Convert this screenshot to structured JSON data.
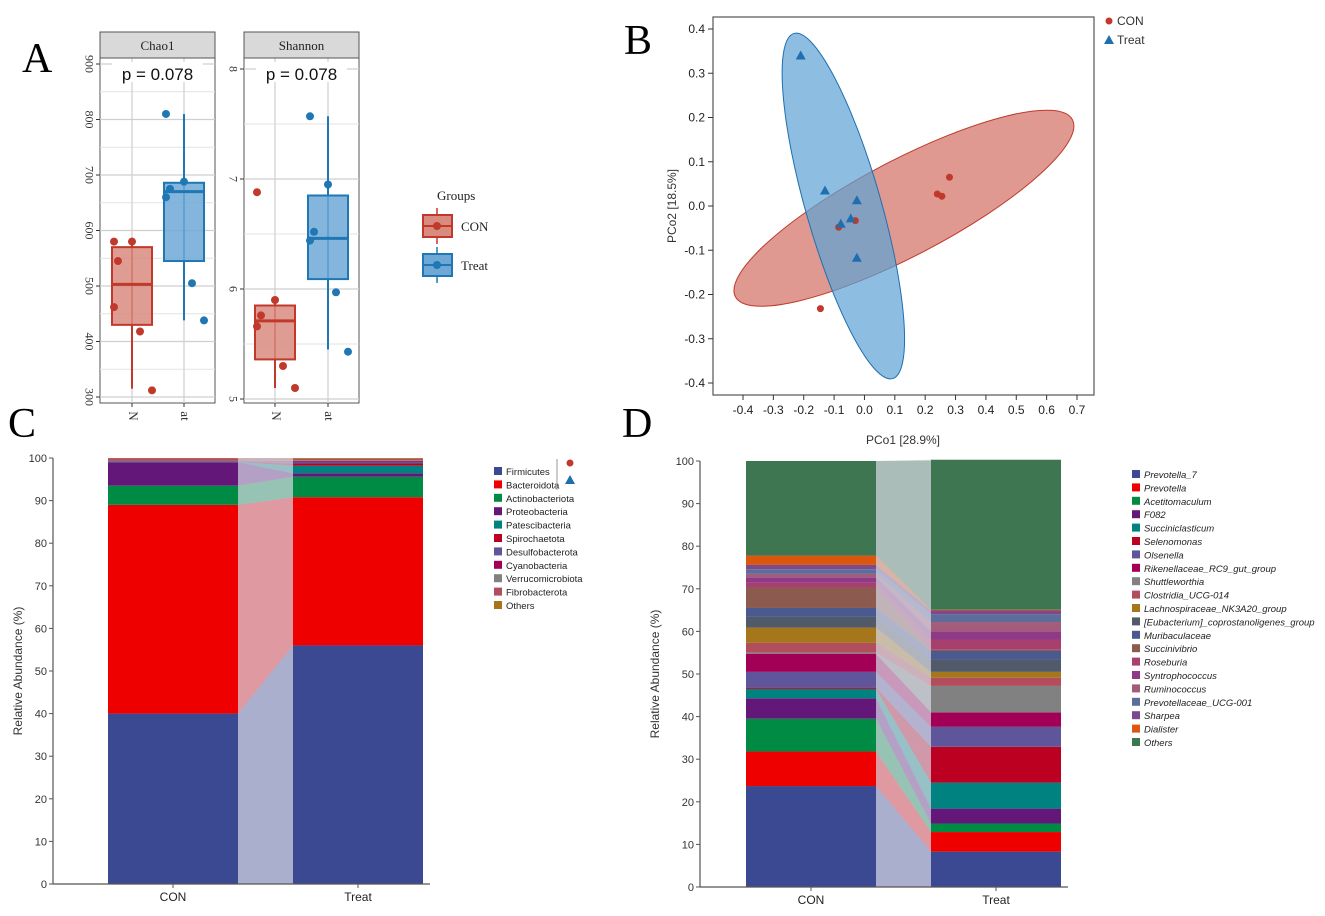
{
  "panel_letters": {
    "a": "A",
    "b": "B",
    "c": "C",
    "d": "D"
  },
  "chart_data": [
    {
      "id": "A",
      "type": "box",
      "groups": [
        {
          "name": "CON",
          "color": "#C0392B",
          "fill": "#D98B80"
        },
        {
          "name": "Treat",
          "color": "#1F77B4",
          "fill": "#6FA8D6"
        }
      ],
      "legend_title": "Groups",
      "xtick_labels": [
        "N",
        "at"
      ],
      "facets": [
        {
          "title": "Chao1",
          "pvalue": "p = 0.078",
          "ylim": [
            300,
            900
          ],
          "yticks": [
            300,
            400,
            500,
            600,
            700,
            800,
            900
          ],
          "boxes": [
            {
              "group": "CON",
              "q1": 430,
              "median": 503,
              "q3": 570,
              "low": 315,
              "high": 580,
              "points": [
                580,
                580,
                545,
                462,
                418,
                312
              ]
            },
            {
              "group": "Treat",
              "q1": 545,
              "median": 670,
              "q3": 686,
              "low": 438,
              "high": 810,
              "points": [
                810,
                688,
                675,
                660,
                505,
                438
              ]
            }
          ]
        },
        {
          "title": "Shannon",
          "pvalue": "p = 0.078",
          "ylim": [
            5,
            8
          ],
          "yticks": [
            5,
            6,
            7,
            8
          ],
          "boxes": [
            {
              "group": "CON",
              "q1": 5.36,
              "median": 5.71,
              "q3": 5.85,
              "low": 5.1,
              "high": 5.9,
              "points": [
                6.88,
                5.9,
                5.76,
                5.66,
                5.3,
                5.1
              ]
            },
            {
              "group": "Treat",
              "q1": 6.09,
              "median": 6.46,
              "q3": 6.85,
              "low": 5.45,
              "high": 7.57,
              "points": [
                7.57,
                6.95,
                6.52,
                6.44,
                5.97,
                5.43
              ]
            }
          ]
        }
      ]
    },
    {
      "id": "B",
      "type": "scatter",
      "xlabel": "PCo1 [28.9%]",
      "ylabel": "PCo2 [18.5%]",
      "xlim": [
        -0.5,
        0.75
      ],
      "ylim": [
        -0.43,
        0.43
      ],
      "xticks": [
        -0.4,
        -0.3,
        -0.2,
        -0.1,
        0.0,
        0.1,
        0.2,
        0.3,
        0.4,
        0.5,
        0.6,
        0.7
      ],
      "yticks": [
        -0.4,
        -0.3,
        -0.2,
        -0.1,
        0.0,
        0.1,
        0.2,
        0.3,
        0.4
      ],
      "legend_position": "top-right",
      "series": [
        {
          "name": "CON",
          "marker": "circle",
          "color": "#C0392B",
          "fill": "#D4776B",
          "points": [
            [
              0.28,
              0.065
            ],
            [
              0.24,
              0.027
            ],
            [
              0.255,
              0.022
            ],
            [
              -0.085,
              -0.048
            ],
            [
              -0.03,
              -0.033
            ],
            [
              -0.145,
              -0.232
            ]
          ],
          "ellipse": {
            "from": [
              -0.425,
              -0.205
            ],
            "to": [
              0.685,
              0.195
            ],
            "width_ratio": 0.25
          }
        },
        {
          "name": "Treat",
          "marker": "triangle",
          "color": "#1F6FAF",
          "fill": "#5DA3D5",
          "points": [
            [
              -0.21,
              0.34
            ],
            [
              -0.13,
              0.035
            ],
            [
              -0.025,
              0.013
            ],
            [
              -0.078,
              -0.04
            ],
            [
              -0.045,
              -0.028
            ],
            [
              -0.025,
              -0.117
            ]
          ],
          "ellipse": {
            "from": [
              -0.232,
              0.39
            ],
            "to": [
              0.093,
              -0.39
            ],
            "width_ratio": 0.21
          }
        }
      ]
    },
    {
      "id": "C",
      "type": "stacked_bar",
      "ylabel": "Relative Abundance (%)",
      "ylim": [
        0,
        100
      ],
      "yticks": [
        0,
        10,
        20,
        30,
        40,
        50,
        60,
        70,
        80,
        90,
        100
      ],
      "categories": [
        "CON",
        "Treat"
      ],
      "legend_markers": {
        "CON": "circle",
        "Treat": "triangle"
      },
      "series": [
        {
          "name": "Firmicutes",
          "color": "#3B4992",
          "values": [
            40.0,
            56.0
          ]
        },
        {
          "name": "Bacteroidota",
          "color": "#EE0000",
          "values": [
            49.0,
            34.8
          ]
        },
        {
          "name": "Actinobacteriota",
          "color": "#008B45",
          "values": [
            4.5,
            4.8
          ]
        },
        {
          "name": "Proteobacteria",
          "color": "#631879",
          "values": [
            5.5,
            0.8
          ]
        },
        {
          "name": "Patescibacteria",
          "color": "#008280",
          "values": [
            0.1,
            1.8
          ]
        },
        {
          "name": "Spirochaetota",
          "color": "#BB0021",
          "values": [
            0.1,
            0.5
          ]
        },
        {
          "name": "Desulfobacterota",
          "color": "#5F559B",
          "values": [
            0.1,
            0.4
          ]
        },
        {
          "name": "Cyanobacteria",
          "color": "#A20056",
          "values": [
            0.1,
            0.2
          ]
        },
        {
          "name": "Verrucomicrobiota",
          "color": "#808180",
          "values": [
            0.1,
            0.2
          ]
        },
        {
          "name": "Fibrobacterota",
          "color": "#B24D5E",
          "values": [
            0.4,
            0.3
          ]
        },
        {
          "name": "Others",
          "color": "#A6761D",
          "values": [
            0.1,
            0.2
          ]
        }
      ]
    },
    {
      "id": "D",
      "type": "stacked_bar",
      "ylabel": "Relative Abundance (%)",
      "ylim": [
        0,
        100
      ],
      "yticks": [
        0,
        10,
        20,
        30,
        40,
        50,
        60,
        70,
        80,
        90,
        100
      ],
      "categories": [
        "CON",
        "Treat"
      ],
      "series": [
        {
          "name": "Prevotella_7",
          "color": "#3B4992",
          "values": [
            23.7,
            8.3
          ]
        },
        {
          "name": "Prevotella",
          "color": "#EE0000",
          "values": [
            8.1,
            4.6
          ]
        },
        {
          "name": "Acetitomaculum",
          "color": "#008B45",
          "values": [
            7.7,
            2.0
          ]
        },
        {
          "name": "F082",
          "color": "#631879",
          "values": [
            4.8,
            3.5
          ]
        },
        {
          "name": "Succiniclasticum",
          "color": "#008280",
          "values": [
            2.2,
            6.1
          ]
        },
        {
          "name": "Selenomonas",
          "color": "#BB0021",
          "values": [
            0.3,
            8.4
          ]
        },
        {
          "name": "Olsenella",
          "color": "#5F559B",
          "values": [
            3.7,
            4.7
          ]
        },
        {
          "name": "Rikenellaceae_RC9_gut_group",
          "color": "#A20056",
          "values": [
            4.2,
            3.4
          ]
        },
        {
          "name": "Shuttleworthia",
          "color": "#808180",
          "values": [
            0.3,
            6.2
          ]
        },
        {
          "name": "Clostridia_UCG-014",
          "color": "#B24D5E",
          "values": [
            2.3,
            1.9
          ]
        },
        {
          "name": "Lachnospiraceae_NK3A20_group",
          "color": "#A6761D",
          "values": [
            3.6,
            1.4
          ]
        },
        {
          "name": "[Eubacterium]_coprostanoligenes_group",
          "color": "#515A68",
          "values": [
            2.5,
            2.8
          ]
        },
        {
          "name": "Muribaculaceae",
          "color": "#4B5A8E",
          "values": [
            2.1,
            2.1
          ]
        },
        {
          "name": "Succinivibrio",
          "color": "#8C5A4E",
          "values": [
            4.8,
            0.3
          ]
        },
        {
          "name": "Roseburia",
          "color": "#A8406E",
          "values": [
            1.1,
            2.4
          ]
        },
        {
          "name": "Syntrophococcus",
          "color": "#8E3A86",
          "values": [
            1.3,
            1.9
          ]
        },
        {
          "name": "Ruminococcus",
          "color": "#A35C7A",
          "values": [
            0.8,
            2.2
          ]
        },
        {
          "name": "Prevotellaceae_UCG-001",
          "color": "#5C6D9C",
          "values": [
            1.1,
            1.8
          ]
        },
        {
          "name": "Sharpea",
          "color": "#7C4A8C",
          "values": [
            1.0,
            0.9
          ]
        },
        {
          "name": "Dialister",
          "color": "#D9570F",
          "values": [
            2.2,
            0.2
          ]
        },
        {
          "name": "Others",
          "color": "#3F7652",
          "values": [
            22.2,
            35.2
          ]
        }
      ]
    }
  ]
}
